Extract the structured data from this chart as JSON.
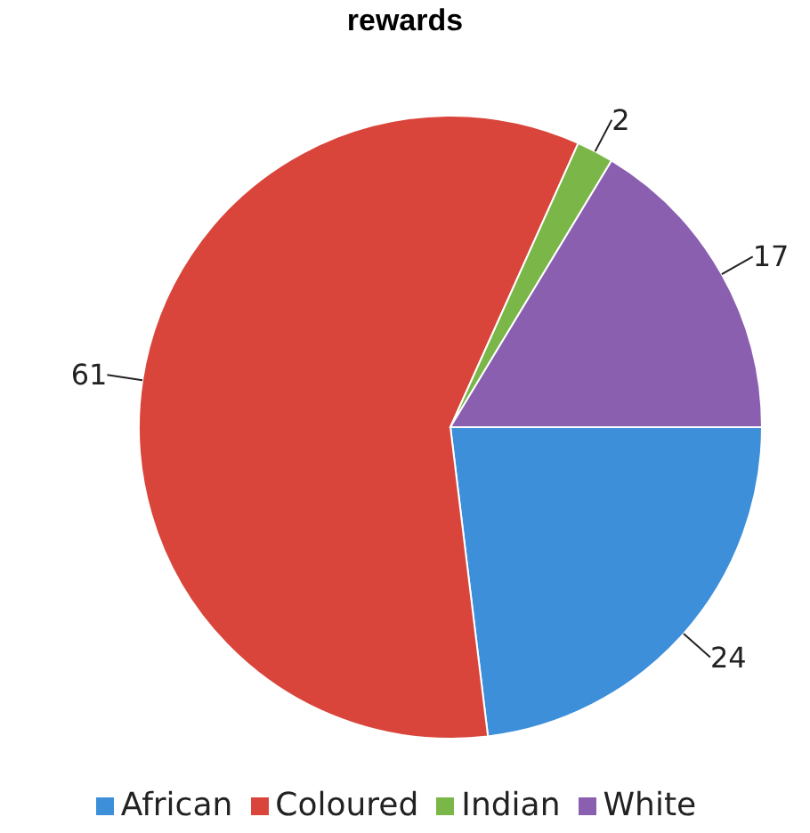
{
  "chart_data": {
    "type": "pie",
    "title": "rewards",
    "categories": [
      "African",
      "Coloured",
      "Indian",
      "White"
    ],
    "values": [
      24,
      61,
      2,
      17
    ],
    "colors": [
      "#3d8fd9",
      "#d9453b",
      "#7ab648",
      "#8a5fb0"
    ],
    "data_labels": true,
    "legend": "bottom"
  }
}
